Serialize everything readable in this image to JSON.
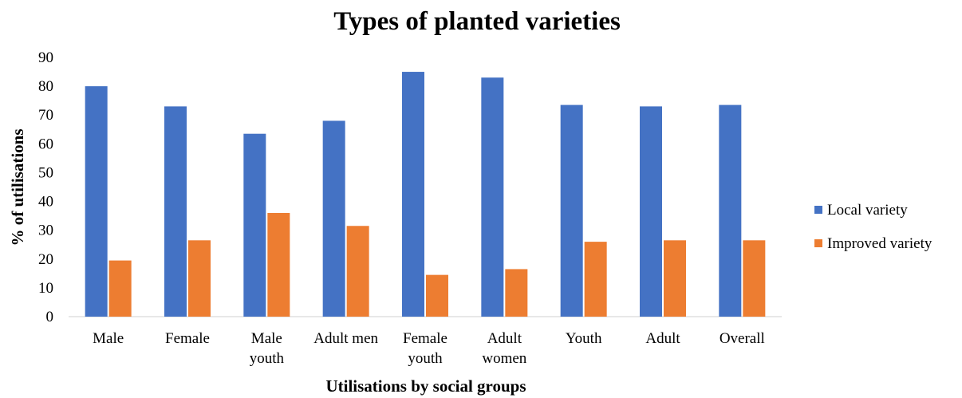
{
  "chart_data": {
    "type": "bar",
    "title": "Types of planted varieties",
    "xlabel": "Utilisations by social groups",
    "ylabel": "% of utilisations",
    "ylim": [
      0,
      90
    ],
    "yticks": [
      0,
      10,
      20,
      30,
      40,
      50,
      60,
      70,
      80,
      90
    ],
    "grid": false,
    "legend_position": "right",
    "categories": [
      [
        "Male"
      ],
      [
        "Female"
      ],
      [
        "Male",
        "youth"
      ],
      [
        "Adult men"
      ],
      [
        "Female",
        "youth"
      ],
      [
        "Adult",
        "women"
      ],
      [
        "Youth"
      ],
      [
        "Adult"
      ],
      [
        "Overall"
      ]
    ],
    "series": [
      {
        "name": "Local variety",
        "color": "#4472C4",
        "values": [
          80,
          73,
          63.5,
          68,
          85,
          83,
          73.5,
          73,
          73.5
        ]
      },
      {
        "name": "Improved variety",
        "color": "#ED7D31",
        "values": [
          19.5,
          26.5,
          36,
          31.5,
          14.5,
          16.5,
          26,
          26.5,
          26.5
        ]
      }
    ]
  }
}
